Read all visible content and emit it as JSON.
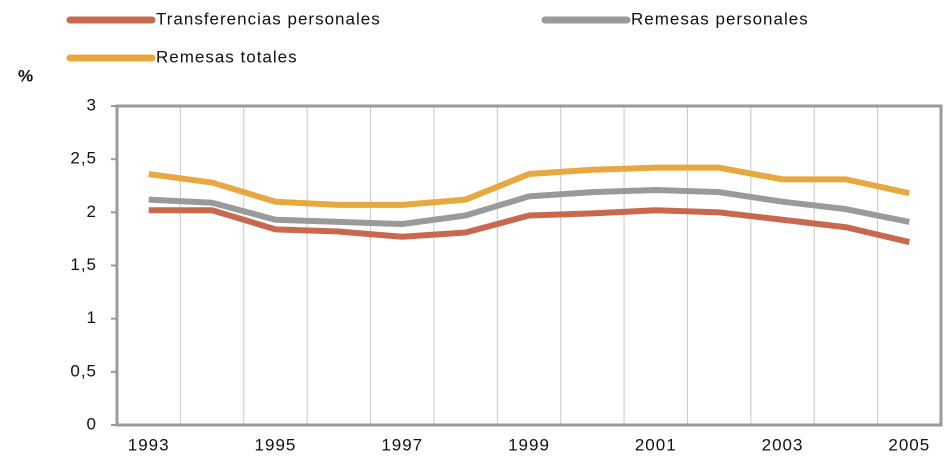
{
  "chart_data": {
    "type": "line",
    "y_unit": "%",
    "categories": [
      "1993",
      null,
      "1995",
      null,
      "1997",
      null,
      "1999",
      null,
      "2001",
      null,
      "2003",
      null,
      "2005"
    ],
    "series": [
      {
        "name": "Transferencias personales",
        "color": "#c8694f",
        "values": [
          2.02,
          2.02,
          1.84,
          1.82,
          1.77,
          1.81,
          1.97,
          1.99,
          2.02,
          2.0,
          1.93,
          1.86,
          1.72
        ]
      },
      {
        "name": "Remesas personales",
        "color": "#9a9a9a",
        "values": [
          2.12,
          2.09,
          1.93,
          1.91,
          1.89,
          1.97,
          2.15,
          2.19,
          2.21,
          2.19,
          2.1,
          2.03,
          1.91
        ]
      },
      {
        "name": "Remesas totales",
        "color": "#e8a840",
        "values": [
          2.36,
          2.28,
          2.1,
          2.07,
          2.07,
          2.12,
          2.36,
          2.4,
          2.42,
          2.42,
          2.31,
          2.31,
          2.18
        ]
      }
    ],
    "ylim": [
      0,
      3
    ],
    "yticks": [
      0,
      {
        "value": 0.5,
        "label": "0,5"
      },
      1,
      {
        "value": 1.5,
        "label": "1,5"
      },
      2,
      {
        "value": 2.5,
        "label": "2,5"
      },
      3
    ],
    "grid": true
  }
}
